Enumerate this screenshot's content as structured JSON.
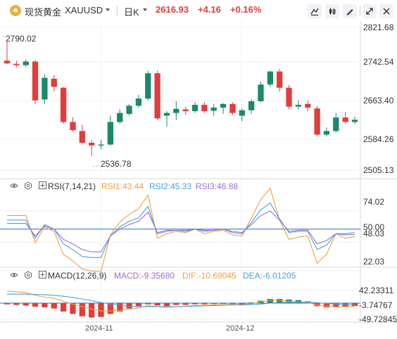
{
  "toolbar": {
    "symbol_name": "现货黄金",
    "symbol_code": "XAUUSD",
    "timeframe": "日K",
    "last_price": "2616.93",
    "change": "+4.16",
    "change_pct": "+0.16%",
    "up_color": "#e23c3c",
    "down_color": "#1a8a6a",
    "icons": [
      "brush-icon",
      "candlestick-settings-icon",
      "pen-icon",
      "collapse-icon",
      "close-icon"
    ]
  },
  "main_chart": {
    "y_ticks": [
      "2821.68",
      "2742.54",
      "2663.40",
      "2584.26",
      "2505.13"
    ],
    "high_label": "2790.02",
    "low_label": "2536.78"
  },
  "rsi": {
    "title": "RSI(7,14,21)",
    "rsi1": "RSI1:43.44",
    "rsi2": "RSI2:45.33",
    "rsi3": "RSI3:46.88",
    "y_ticks": [
      "74.02",
      "50.00",
      "48.03",
      "22.03"
    ]
  },
  "macd": {
    "title": "MACD(12,26,9)",
    "macd": "MACD:-9.35680",
    "dif": "DIF:-10.69045",
    "dea": "DEA:-6.01205",
    "y_ticks": [
      "42.23311",
      "-3.74767",
      "-49.72845"
    ]
  },
  "x_axis": [
    "2024-11",
    "2024-12"
  ],
  "chart_data": {
    "type": "candlestick",
    "candles": [
      {
        "o": 2748,
        "h": 2790.02,
        "l": 2740,
        "c": 2742
      },
      {
        "o": 2741,
        "h": 2748,
        "l": 2733,
        "c": 2738
      },
      {
        "o": 2738,
        "h": 2750,
        "l": 2734,
        "c": 2746
      },
      {
        "o": 2746,
        "h": 2750,
        "l": 2652,
        "c": 2660
      },
      {
        "o": 2662,
        "h": 2718,
        "l": 2652,
        "c": 2710
      },
      {
        "o": 2708,
        "h": 2716,
        "l": 2680,
        "c": 2690
      },
      {
        "o": 2688,
        "h": 2690,
        "l": 2608,
        "c": 2612
      },
      {
        "o": 2612,
        "h": 2622,
        "l": 2590,
        "c": 2594
      },
      {
        "o": 2592,
        "h": 2606,
        "l": 2562,
        "c": 2566
      },
      {
        "o": 2566,
        "h": 2572,
        "l": 2536.78,
        "c": 2560
      },
      {
        "o": 2560,
        "h": 2572,
        "l": 2552,
        "c": 2562
      },
      {
        "o": 2562,
        "h": 2626,
        "l": 2560,
        "c": 2612
      },
      {
        "o": 2612,
        "h": 2640,
        "l": 2608,
        "c": 2632
      },
      {
        "o": 2630,
        "h": 2652,
        "l": 2626,
        "c": 2648
      },
      {
        "o": 2648,
        "h": 2672,
        "l": 2644,
        "c": 2664
      },
      {
        "o": 2664,
        "h": 2726,
        "l": 2660,
        "c": 2720
      },
      {
        "o": 2720,
        "h": 2726,
        "l": 2616,
        "c": 2620
      },
      {
        "o": 2626,
        "h": 2636,
        "l": 2602,
        "c": 2632
      },
      {
        "o": 2632,
        "h": 2658,
        "l": 2616,
        "c": 2641
      },
      {
        "o": 2640,
        "h": 2646,
        "l": 2628,
        "c": 2636
      },
      {
        "o": 2636,
        "h": 2656,
        "l": 2632,
        "c": 2650
      },
      {
        "o": 2650,
        "h": 2656,
        "l": 2632,
        "c": 2636
      },
      {
        "o": 2637,
        "h": 2652,
        "l": 2626,
        "c": 2644
      },
      {
        "o": 2644,
        "h": 2654,
        "l": 2630,
        "c": 2652
      },
      {
        "o": 2652,
        "h": 2656,
        "l": 2628,
        "c": 2632
      },
      {
        "o": 2626,
        "h": 2642,
        "l": 2614,
        "c": 2638
      },
      {
        "o": 2638,
        "h": 2662,
        "l": 2630,
        "c": 2658
      },
      {
        "o": 2658,
        "h": 2702,
        "l": 2656,
        "c": 2695
      },
      {
        "o": 2695,
        "h": 2726,
        "l": 2690,
        "c": 2724
      },
      {
        "o": 2724,
        "h": 2730,
        "l": 2680,
        "c": 2688
      },
      {
        "o": 2688,
        "h": 2694,
        "l": 2640,
        "c": 2646
      },
      {
        "o": 2646,
        "h": 2660,
        "l": 2640,
        "c": 2650
      },
      {
        "o": 2652,
        "h": 2660,
        "l": 2636,
        "c": 2644
      },
      {
        "o": 2642,
        "h": 2648,
        "l": 2580,
        "c": 2584
      },
      {
        "o": 2584,
        "h": 2600,
        "l": 2580,
        "c": 2592
      },
      {
        "o": 2592,
        "h": 2632,
        "l": 2588,
        "c": 2622
      },
      {
        "o": 2622,
        "h": 2634,
        "l": 2608,
        "c": 2612
      },
      {
        "o": 2612,
        "h": 2624,
        "l": 2608,
        "c": 2617
      }
    ],
    "rsi1": [
      62,
      62,
      62,
      38,
      52,
      48,
      28,
      22,
      15,
      13,
      13,
      45,
      56,
      63,
      68,
      80,
      42,
      46,
      48,
      47,
      50,
      46,
      48,
      49,
      45,
      44,
      60,
      76,
      86,
      58,
      41,
      43,
      44,
      20,
      28,
      46,
      42,
      43.44
    ],
    "rsi2": [
      58,
      58,
      58,
      42,
      54,
      50,
      37,
      32,
      26,
      25,
      25,
      44,
      52,
      57,
      60,
      70,
      46,
      48,
      49,
      48,
      50,
      48,
      49,
      50,
      47,
      46,
      56,
      67,
      73,
      59,
      47,
      48,
      48,
      32,
      36,
      46,
      45,
      45.33
    ],
    "rsi3": [
      55,
      55,
      55,
      44,
      53,
      50,
      41,
      37,
      32,
      30,
      30,
      44,
      50,
      54,
      57,
      65,
      47,
      49,
      49,
      49,
      50,
      49,
      49,
      50,
      48,
      47,
      54,
      62,
      66,
      58,
      48,
      49,
      49,
      37,
      40,
      46,
      46,
      46.88
    ],
    "macd_hist": [
      -4,
      -6,
      -8,
      -12,
      -14,
      -18,
      -28,
      -36,
      -44,
      -48,
      -46,
      -36,
      -28,
      -18,
      -10,
      -4,
      -8,
      -10,
      -6,
      -6,
      -4,
      -4,
      -3,
      -2,
      -3,
      -4,
      2,
      8,
      14,
      14,
      12,
      10,
      6,
      -10,
      -14,
      -14,
      -12,
      -9.3568
    ],
    "dif": [
      40,
      38,
      35,
      26,
      20,
      16,
      6,
      -4,
      -12,
      -20,
      -26,
      -26,
      -24,
      -20,
      -16,
      -8,
      -12,
      -14,
      -12,
      -10,
      -8,
      -7,
      -6,
      -5,
      -5,
      -5,
      -2,
      4,
      10,
      10,
      6,
      4,
      2,
      -6,
      -10,
      -12,
      -12,
      -10.69045
    ],
    "dea": [
      30,
      30,
      30,
      29,
      28,
      26,
      23,
      19,
      14,
      8,
      2,
      -3,
      -7,
      -10,
      -12,
      -12,
      -12,
      -12,
      -12,
      -11,
      -10,
      -9,
      -8,
      -7,
      -6,
      -6,
      -5,
      -3,
      0,
      2,
      3,
      3,
      3,
      1,
      -1,
      -3,
      -5,
      -6.01205
    ]
  }
}
